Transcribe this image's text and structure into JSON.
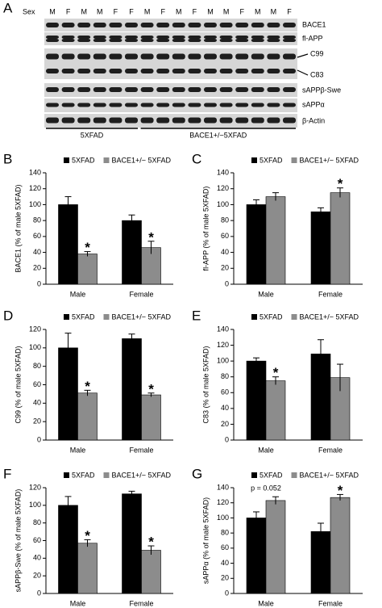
{
  "panel_a": {
    "letter": "A",
    "sex_label": "Sex",
    "lanes": [
      "M",
      "F",
      "M",
      "M",
      "F",
      "F",
      "M",
      "F",
      "M",
      "F",
      "M",
      "M",
      "F",
      "M",
      "M",
      "F"
    ],
    "bands": [
      "BACE1",
      "fl-APP",
      "C99",
      "C83",
      "sAPPβ-Swe",
      "sAPPα",
      "β-Actin"
    ],
    "groups": [
      "5XFAD",
      "BACE1+/−5XFAD"
    ]
  },
  "chart_data": [
    {
      "type": "bar",
      "panel": "B",
      "ylabel": "BACE1 (% of male 5XFAD)",
      "categories": [
        "Male",
        "Female"
      ],
      "series": [
        {
          "name": "5XFAD",
          "color": "#000000",
          "values": [
            100,
            80
          ],
          "errors": [
            10,
            7
          ]
        },
        {
          "name": "BACE1+/− 5XFAD",
          "color": "#8c8c8c",
          "values": [
            38,
            46
          ],
          "errors": [
            3,
            8
          ]
        }
      ],
      "ylim": [
        0,
        140
      ],
      "yticks": [
        0,
        20,
        40,
        60,
        80,
        100,
        120,
        140
      ],
      "annotations": [
        {
          "text": "*",
          "series": 1,
          "category": 0
        },
        {
          "text": "*",
          "series": 1,
          "category": 1
        }
      ]
    },
    {
      "type": "bar",
      "panel": "C",
      "ylabel": "fl-APP (% of male 5XFAD)",
      "categories": [
        "Male",
        "Female"
      ],
      "series": [
        {
          "name": "5XFAD",
          "color": "#000000",
          "values": [
            100,
            91
          ],
          "errors": [
            6,
            5
          ]
        },
        {
          "name": "BACE1+/− 5XFAD",
          "color": "#8c8c8c",
          "values": [
            110,
            115
          ],
          "errors": [
            5,
            6
          ]
        }
      ],
      "ylim": [
        0,
        140
      ],
      "yticks": [
        0,
        20,
        40,
        60,
        80,
        100,
        120,
        140
      ],
      "annotations": [
        {
          "text": "*",
          "series": 1,
          "category": 1
        }
      ]
    },
    {
      "type": "bar",
      "panel": "D",
      "ylabel": "C99 (% of male 5XFAD)",
      "categories": [
        "Male",
        "Female"
      ],
      "series": [
        {
          "name": "5XFAD",
          "color": "#000000",
          "values": [
            100,
            110
          ],
          "errors": [
            16,
            5
          ]
        },
        {
          "name": "BACE1+/− 5XFAD",
          "color": "#8c8c8c",
          "values": [
            51,
            49
          ],
          "errors": [
            3,
            2
          ]
        }
      ],
      "ylim": [
        0,
        120
      ],
      "yticks": [
        0,
        20,
        40,
        60,
        80,
        100,
        120
      ],
      "annotations": [
        {
          "text": "*",
          "series": 1,
          "category": 0
        },
        {
          "text": "*",
          "series": 1,
          "category": 1
        }
      ]
    },
    {
      "type": "bar",
      "panel": "E",
      "ylabel": "C83 (% of male 5XFAD)",
      "categories": [
        "Male",
        "Female"
      ],
      "series": [
        {
          "name": "5XFAD",
          "color": "#000000",
          "values": [
            100,
            109
          ],
          "errors": [
            4,
            18
          ]
        },
        {
          "name": "BACE1+/− 5XFAD",
          "color": "#8c8c8c",
          "values": [
            75,
            79
          ],
          "errors": [
            5,
            17
          ]
        }
      ],
      "ylim": [
        0,
        140
      ],
      "yticks": [
        0,
        20,
        40,
        60,
        80,
        100,
        120,
        140
      ],
      "annotations": [
        {
          "text": "*",
          "series": 1,
          "category": 0
        }
      ]
    },
    {
      "type": "bar",
      "panel": "F",
      "ylabel": "sAPPβ-Swe (% of male 5XFAD)",
      "categories": [
        "Male",
        "Female"
      ],
      "series": [
        {
          "name": "5XFAD",
          "color": "#000000",
          "values": [
            100,
            113
          ],
          "errors": [
            10,
            3
          ]
        },
        {
          "name": "BACE1+/− 5XFAD",
          "color": "#8c8c8c",
          "values": [
            57,
            49
          ],
          "errors": [
            4,
            5
          ]
        }
      ],
      "ylim": [
        0,
        120
      ],
      "yticks": [
        0,
        20,
        40,
        60,
        80,
        100,
        120
      ],
      "annotations": [
        {
          "text": "*",
          "series": 1,
          "category": 0
        },
        {
          "text": "*",
          "series": 1,
          "category": 1
        }
      ]
    },
    {
      "type": "bar",
      "panel": "G",
      "ylabel": "sAPPα (% of male 5XFAD)",
      "categories": [
        "Male",
        "Female"
      ],
      "series": [
        {
          "name": "5XFAD",
          "color": "#000000",
          "values": [
            100,
            82
          ],
          "errors": [
            8,
            11
          ]
        },
        {
          "name": "BACE1+/− 5XFAD",
          "color": "#8c8c8c",
          "values": [
            123,
            127
          ],
          "errors": [
            5,
            4
          ]
        }
      ],
      "ylim": [
        0,
        140
      ],
      "yticks": [
        0,
        20,
        40,
        60,
        80,
        100,
        120,
        140
      ],
      "annotations": [
        {
          "text": "p = 0.052",
          "category": 0
        },
        {
          "text": "*",
          "series": 1,
          "category": 1
        }
      ]
    }
  ]
}
